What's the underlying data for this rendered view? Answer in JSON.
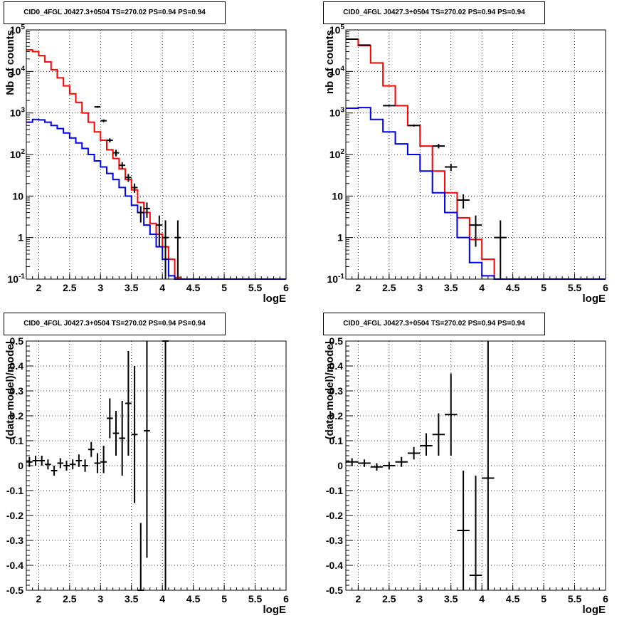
{
  "plot_title": "CID0_4FGL J0427.3+0504 TS=270.02 PS=0.94 PS=0.94",
  "chart_data": [
    {
      "type": "line",
      "scale": "log",
      "title": "CID0_4FGL J0427.3+0504 TS=270.02 PS=0.94 PS=0.94",
      "xlabel": "logE",
      "ylabel": "Nb of counts",
      "xlim": [
        1.8,
        6.0
      ],
      "ylim": [
        0.1,
        100000
      ],
      "xticks": [
        "2",
        "2.5",
        "3",
        "3.5",
        "4",
        "4.5",
        "5",
        "5.5",
        "6"
      ],
      "yticks": [
        "10^-1",
        "1",
        "10",
        "10^2",
        "10^3",
        "10^4",
        "10^5"
      ],
      "grid": true,
      "edges": [
        1.8,
        1.9,
        2.0,
        2.1,
        2.2,
        2.3,
        2.4,
        2.5,
        2.6,
        2.7,
        2.8,
        2.9,
        3.0,
        3.1,
        3.2,
        3.3,
        3.4,
        3.5,
        3.6,
        3.7,
        3.8,
        3.9,
        4.0,
        4.1,
        4.2,
        4.3,
        4.4,
        4.5,
        4.6,
        4.7,
        4.8,
        4.9,
        5.0,
        5.1,
        5.2,
        5.3,
        5.4,
        5.5,
        5.6,
        5.7,
        5.8,
        5.9,
        6.0
      ],
      "series": [
        {
          "color": "#ff0000",
          "values": [
            33000,
            30000,
            24000,
            17000,
            11000,
            7000,
            4500,
            2900,
            1800,
            1000,
            600,
            350,
            220,
            130,
            80,
            45,
            25,
            14,
            7,
            4,
            2.2,
            1.2,
            0.6,
            0.3,
            0.11,
            0.05,
            0,
            0,
            0,
            0,
            0,
            0,
            0,
            0,
            0,
            0,
            0,
            0,
            0,
            0,
            0,
            0
          ]
        },
        {
          "color": "#0000ee",
          "values": [
            600,
            700,
            680,
            600,
            500,
            420,
            330,
            250,
            190,
            140,
            100,
            70,
            50,
            35,
            25,
            16,
            10,
            6,
            4,
            2,
            1.2,
            0.6,
            0.3,
            0.12,
            0.1,
            0.1,
            0.1,
            0.1,
            0.1,
            0.1,
            0.1,
            0.1,
            0.1,
            0.1,
            0.1,
            0.1,
            0.1,
            0.1,
            0.1,
            0.1,
            0.1,
            0.1
          ]
        }
      ],
      "points": [
        {
          "x": 2.95,
          "y": 1400,
          "lo": 1330,
          "hi": 1470
        },
        {
          "x": 3.05,
          "y": 650,
          "lo": 600,
          "hi": 700
        },
        {
          "x": 3.15,
          "y": 220,
          "lo": 195,
          "hi": 245
        },
        {
          "x": 3.25,
          "y": 110,
          "lo": 90,
          "hi": 130
        },
        {
          "x": 3.35,
          "y": 55,
          "lo": 45,
          "hi": 65
        },
        {
          "x": 3.45,
          "y": 28,
          "lo": 22,
          "hi": 34
        },
        {
          "x": 3.55,
          "y": 16,
          "lo": 12,
          "hi": 20
        },
        {
          "x": 3.65,
          "y": 4,
          "lo": 2.3,
          "hi": 5.7
        },
        {
          "x": 3.75,
          "y": 5,
          "lo": 3,
          "hi": 7
        },
        {
          "x": 3.95,
          "y": 2,
          "lo": 0.6,
          "hi": 3.4
        },
        {
          "x": 4.05,
          "y": 1,
          "lo": 0.1,
          "hi": 2.6
        },
        {
          "x": 4.25,
          "y": 1,
          "lo": 0.1,
          "hi": 2.6
        }
      ]
    },
    {
      "type": "line",
      "scale": "log",
      "title": "CID0_4FGL J0427.3+0504 TS=270.02 PS=0.94 PS=0.94",
      "xlabel": "logE",
      "ylabel": "nb of counts",
      "xlim": [
        1.8,
        6.0
      ],
      "ylim": [
        0.1,
        100000
      ],
      "xticks": [
        "2",
        "2.5",
        "3",
        "3.5",
        "4",
        "4.5",
        "5",
        "5.5",
        "6"
      ],
      "yticks": [
        "10^-1",
        "1",
        "10",
        "10^2",
        "10^3",
        "10^4",
        "10^5"
      ],
      "grid": true,
      "edges": [
        1.8,
        2.0,
        2.2,
        2.4,
        2.6,
        2.8,
        3.0,
        3.2,
        3.4,
        3.6,
        3.8,
        4.0,
        4.2,
        4.4,
        4.6,
        4.8,
        5.0,
        5.2,
        5.4,
        5.6,
        5.8,
        6.0
      ],
      "series": [
        {
          "color": "#ff0000",
          "values": [
            60000,
            42000,
            16000,
            4500,
            1500,
            500,
            160,
            40,
            12,
            3,
            0.9,
            0.3,
            0.1,
            0,
            0,
            0,
            0,
            0,
            0,
            0,
            0
          ]
        },
        {
          "color": "#0000ee",
          "values": [
            1300,
            1350,
            700,
            350,
            180,
            100,
            40,
            12,
            4,
            1,
            0.25,
            0.12,
            0.1,
            0.1,
            0.1,
            0.1,
            0.1,
            0.1,
            0.1,
            0.1,
            0.1
          ]
        }
      ],
      "points": [
        {
          "x": 1.9,
          "y": 60000,
          "lo": 59000,
          "hi": 61000
        },
        {
          "x": 2.1,
          "y": 43000,
          "lo": 42000,
          "hi": 44000
        },
        {
          "x": 2.5,
          "y": 1500,
          "lo": 1430,
          "hi": 1570
        },
        {
          "x": 2.9,
          "y": 500,
          "lo": 470,
          "hi": 530
        },
        {
          "x": 3.3,
          "y": 160,
          "lo": 140,
          "hi": 180
        },
        {
          "x": 3.5,
          "y": 50,
          "lo": 40,
          "hi": 60
        },
        {
          "x": 3.7,
          "y": 8,
          "lo": 5,
          "hi": 11
        },
        {
          "x": 3.9,
          "y": 2,
          "lo": 0.6,
          "hi": 3.4
        },
        {
          "x": 4.3,
          "y": 1,
          "lo": 0.1,
          "hi": 2.6
        }
      ]
    },
    {
      "type": "scatter",
      "scale": "linear",
      "title": "CID0_4FGL J0427.3+0504 TS=270.02 PS=0.94 PS=0.94",
      "xlabel": "logE",
      "ylabel": "(data-model)/model",
      "xlim": [
        1.8,
        6.0
      ],
      "ylim": [
        -0.5,
        0.5
      ],
      "xticks": [
        "2",
        "2.5",
        "3",
        "3.5",
        "4",
        "4.5",
        "5",
        "5.5",
        "6"
      ],
      "yticks": [
        "-0.5",
        "-0.4",
        "-0.3",
        "-0.2",
        "-0.1",
        "0",
        "0.1",
        "0.2",
        "0.3",
        "0.4",
        "0.5"
      ],
      "grid": true,
      "points": [
        {
          "x": 1.85,
          "y": 0.015,
          "lo": -0.005,
          "hi": 0.035
        },
        {
          "x": 1.95,
          "y": 0.02,
          "lo": 0.0,
          "hi": 0.04
        },
        {
          "x": 2.05,
          "y": 0.02,
          "lo": 0.0,
          "hi": 0.04
        },
        {
          "x": 2.15,
          "y": 0.005,
          "lo": -0.015,
          "hi": 0.025
        },
        {
          "x": 2.25,
          "y": -0.02,
          "lo": -0.04,
          "hi": 0.0
        },
        {
          "x": 2.35,
          "y": 0.01,
          "lo": -0.01,
          "hi": 0.03
        },
        {
          "x": 2.45,
          "y": 0.0,
          "lo": -0.02,
          "hi": 0.02
        },
        {
          "x": 2.55,
          "y": 0.005,
          "lo": -0.015,
          "hi": 0.025
        },
        {
          "x": 2.65,
          "y": 0.02,
          "lo": -0.005,
          "hi": 0.045
        },
        {
          "x": 2.75,
          "y": 0.0,
          "lo": -0.025,
          "hi": 0.025
        },
        {
          "x": 2.85,
          "y": 0.065,
          "lo": 0.035,
          "hi": 0.095
        },
        {
          "x": 2.95,
          "y": 0.01,
          "lo": -0.03,
          "hi": 0.05
        },
        {
          "x": 3.05,
          "y": 0.015,
          "lo": -0.03,
          "hi": 0.08
        },
        {
          "x": 3.15,
          "y": 0.19,
          "lo": 0.11,
          "hi": 0.27
        },
        {
          "x": 3.25,
          "y": 0.13,
          "lo": 0.04,
          "hi": 0.22
        },
        {
          "x": 3.35,
          "y": 0.11,
          "lo": -0.04,
          "hi": 0.26
        },
        {
          "x": 3.45,
          "y": 0.25,
          "lo": 0.04,
          "hi": 0.46
        },
        {
          "x": 3.55,
          "y": 0.125,
          "lo": -0.15,
          "hi": 0.4
        },
        {
          "x": 3.65,
          "y": -0.5,
          "lo": -0.5,
          "hi": -0.23
        },
        {
          "x": 3.75,
          "y": 0.14,
          "lo": -0.37,
          "hi": 0.5
        },
        {
          "x": 4.05,
          "y": 0.5,
          "lo": -0.5,
          "hi": 0.5
        }
      ]
    },
    {
      "type": "scatter",
      "scale": "linear",
      "title": "CID0_4FGL J0427.3+0504 TS=270.02 PS=0.94 PS=0.94",
      "xlabel": "logE",
      "ylabel": "(data-model)/model",
      "xlim": [
        1.8,
        6.0
      ],
      "ylim": [
        -0.5,
        0.5
      ],
      "xticks": [
        "2",
        "2.5",
        "3",
        "3.5",
        "4",
        "4.5",
        "5",
        "5.5",
        "6"
      ],
      "yticks": [
        "-0.5",
        "-0.4",
        "-0.3",
        "-0.2",
        "-0.1",
        "0",
        "0.1",
        "0.2",
        "0.3",
        "0.4",
        "0.5"
      ],
      "grid": true,
      "points": [
        {
          "x": 1.9,
          "y": 0.015,
          "lo": 0.0,
          "hi": 0.03
        },
        {
          "x": 2.1,
          "y": 0.01,
          "lo": -0.005,
          "hi": 0.025
        },
        {
          "x": 2.3,
          "y": -0.005,
          "lo": -0.02,
          "hi": 0.01
        },
        {
          "x": 2.5,
          "y": 0.0,
          "lo": -0.015,
          "hi": 0.015
        },
        {
          "x": 2.7,
          "y": 0.015,
          "lo": -0.005,
          "hi": 0.035
        },
        {
          "x": 2.9,
          "y": 0.05,
          "lo": 0.025,
          "hi": 0.075
        },
        {
          "x": 3.1,
          "y": 0.08,
          "lo": 0.04,
          "hi": 0.13
        },
        {
          "x": 3.3,
          "y": 0.125,
          "lo": 0.04,
          "hi": 0.21
        },
        {
          "x": 3.5,
          "y": 0.205,
          "lo": 0.04,
          "hi": 0.37
        },
        {
          "x": 3.7,
          "y": -0.26,
          "lo": -0.5,
          "hi": -0.02
        },
        {
          "x": 3.9,
          "y": -0.44,
          "lo": -0.5,
          "hi": -0.04
        },
        {
          "x": 4.1,
          "y": -0.05,
          "lo": -0.5,
          "hi": 0.5
        }
      ]
    }
  ]
}
